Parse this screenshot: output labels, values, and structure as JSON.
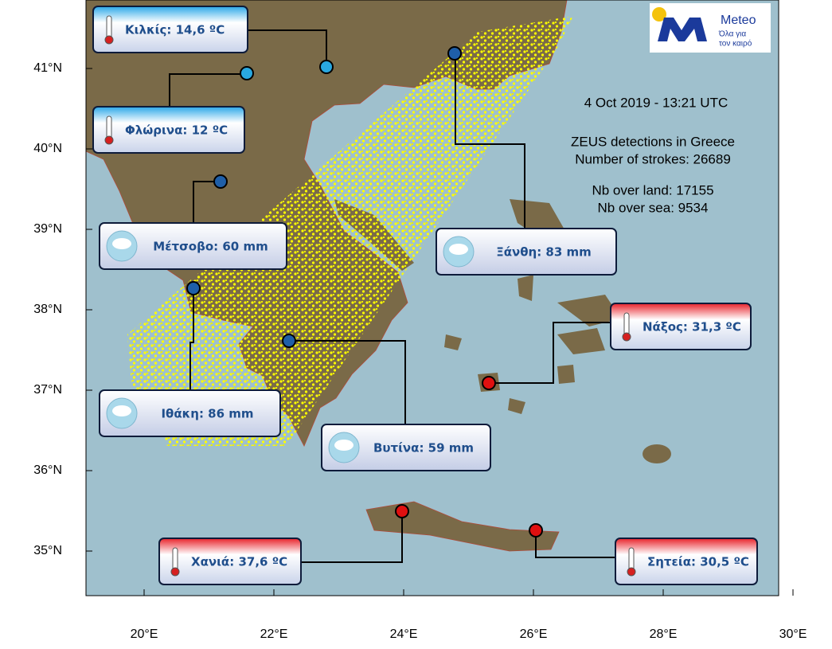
{
  "map": {
    "lon_ticks": [
      "20°E",
      "22°E",
      "24°E",
      "26°E",
      "28°E",
      "30°E"
    ],
    "lat_ticks": [
      "41°N",
      "40°N",
      "39°N",
      "38°N",
      "37°N",
      "36°N",
      "35°N"
    ],
    "info": [
      "4  Oct 2019 - 13:21 UTC",
      "ZEUS detections in Greece",
      "Number of strokes: 26689",
      "Nb over land: 17155",
      "Nb over sea: 9534"
    ],
    "logo": {
      "name": "Meteo",
      "tagline_1": "Όλα για",
      "tagline_2": "τον καιρό"
    },
    "stations": [
      {
        "label": "Κιλκίς: 14,6 ºC"
      },
      {
        "label": "Φλώρινα: 12 ºC"
      },
      {
        "label": "Μέτσοβο: 60 mm"
      },
      {
        "label": "Ιθάκη: 86 mm"
      },
      {
        "label": "Βυτίνα: 59 mm"
      },
      {
        "label": "Ξάνθη: 83 mm"
      },
      {
        "label": "Νάξος: 31,3 ºC"
      },
      {
        "label": "Χανιά: 37,6 ºC"
      },
      {
        "label": "Σητεία: 30,5 ºC"
      }
    ]
  }
}
